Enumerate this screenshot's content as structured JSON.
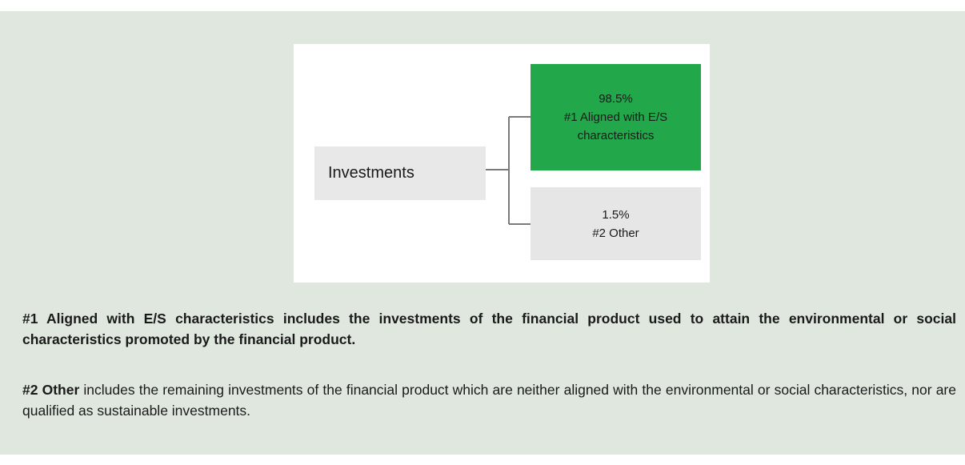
{
  "diagram": {
    "root": "Investments",
    "branches": [
      {
        "value": "98.5%",
        "label": "#1 Aligned with E/S characteristics"
      },
      {
        "value": "1.5%",
        "label": "#2 Other"
      }
    ]
  },
  "notes": [
    {
      "bold": "#1 Aligned with E/S characteristics includes the investments of the financial product used to attain the environmental or social characteristics promoted by the financial product."
    },
    {
      "bold": "#2 Other",
      "text": "includes the remaining investments of the financial product which are neither aligned with the environmental or social characteristics, nor are qualified as sustainable investments."
    }
  ]
}
